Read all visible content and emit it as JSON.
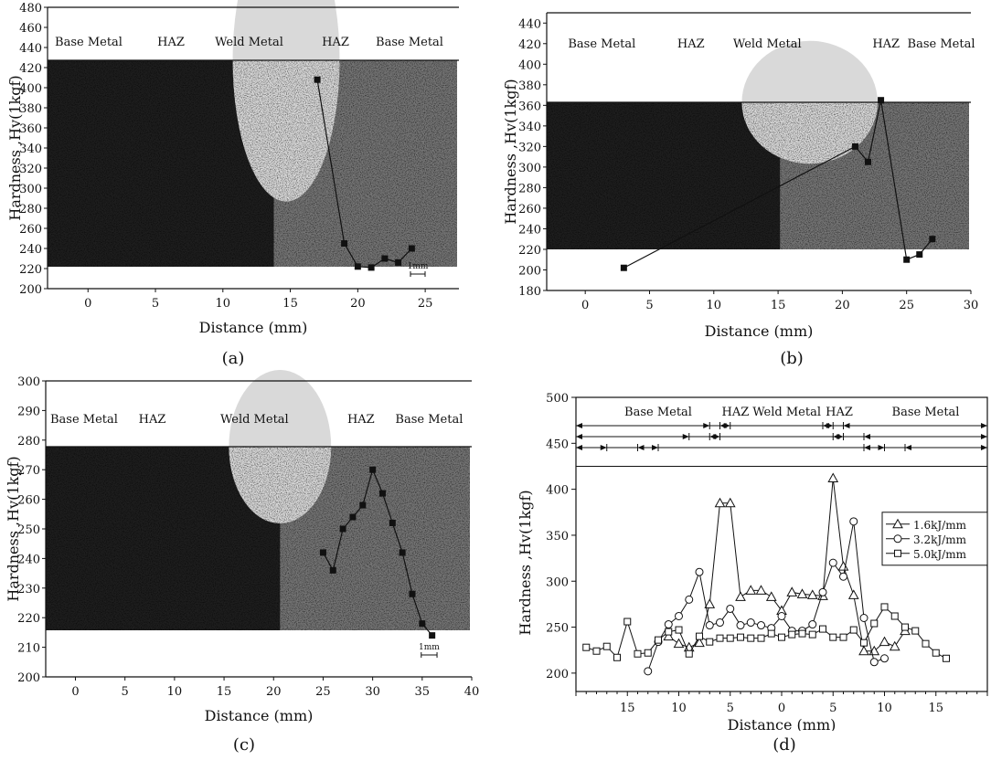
{
  "chart_data": [
    {
      "type": "scatter",
      "caption": "(a)",
      "xlabel": "Distance (mm)",
      "ylabel": "Hardness ,Hv(1kgf)",
      "xlim": [
        -3,
        27.5
      ],
      "ylim": [
        200,
        480
      ],
      "xticks": [
        0,
        5,
        10,
        15,
        20,
        25
      ],
      "yticks": [
        200,
        220,
        240,
        260,
        280,
        300,
        320,
        340,
        360,
        380,
        400,
        420,
        440,
        460,
        480
      ],
      "regions": [
        "Base Metal",
        "HAZ",
        "Weld Metal",
        "HAZ",
        "Base Metal"
      ],
      "scale_bar": "1mm",
      "series": [
        {
          "x": [
            17,
            19,
            20,
            21,
            22,
            23,
            24
          ],
          "y": [
            408,
            245,
            222,
            221,
            230,
            226,
            240
          ]
        }
      ]
    },
    {
      "type": "scatter",
      "caption": "(b)",
      "xlabel": "Distance (mm)",
      "ylabel": "Hardness ,Hv(1kgf)",
      "xlim": [
        -3,
        30
      ],
      "ylim": [
        180,
        450
      ],
      "xticks": [
        0,
        5,
        10,
        15,
        20,
        25,
        30
      ],
      "yticks": [
        180,
        200,
        220,
        240,
        260,
        280,
        300,
        320,
        340,
        360,
        380,
        400,
        420,
        440
      ],
      "regions": [
        "Base Metal",
        "HAZ",
        "Weld Metal",
        "HAZ",
        "Base Metal"
      ],
      "series": [
        {
          "x": [
            3,
            21,
            22,
            23,
            25,
            26,
            27
          ],
          "y": [
            202,
            320,
            305,
            365,
            210,
            215,
            230
          ]
        }
      ]
    },
    {
      "type": "scatter",
      "caption": "(c)",
      "xlabel": "Distance (mm)",
      "ylabel": "Hardness ,Hv(1kgf)",
      "xlim": [
        -3,
        40
      ],
      "ylim": [
        200,
        300
      ],
      "xticks": [
        0,
        5,
        10,
        15,
        20,
        25,
        30,
        35,
        40
      ],
      "yticks": [
        200,
        210,
        220,
        230,
        240,
        250,
        260,
        270,
        280,
        290,
        300
      ],
      "regions": [
        "Base Metal",
        "HAZ",
        "Weld Metal",
        "HAZ",
        "Base Metal"
      ],
      "scale_bar": "1mm",
      "series": [
        {
          "x": [
            25,
            26,
            27,
            28,
            29,
            30,
            31,
            32,
            33,
            34,
            35,
            36
          ],
          "y": [
            242,
            236,
            250,
            254,
            258,
            270,
            262,
            252,
            242,
            228,
            218,
            214
          ]
        }
      ]
    },
    {
      "type": "line",
      "caption": "(d)",
      "xlabel": "Distance (mm)",
      "ylabel": "Hardness ,Hv(1kgf)",
      "xlim": [
        -20,
        20
      ],
      "ylim": [
        180,
        500
      ],
      "xtick_values": [
        -15,
        -10,
        -5,
        0,
        5,
        10,
        15
      ],
      "xtick_labels": [
        "15",
        "10",
        "5",
        "0",
        "5",
        "10",
        "15"
      ],
      "yticks": [
        200,
        250,
        300,
        350,
        400,
        450,
        500
      ],
      "regions": [
        "Base Metal",
        "HAZ",
        "Weld Metal",
        "HAZ",
        "Base Metal"
      ],
      "legend_position": "right",
      "series": [
        {
          "name": "1.6kJ/mm",
          "marker": "triangle",
          "x": [
            -11,
            -10,
            -9,
            -8,
            -7,
            -6,
            -5,
            -4,
            -3,
            -2,
            -1,
            0,
            1,
            2,
            3,
            4,
            5,
            6,
            7,
            8,
            9,
            10,
            11,
            12
          ],
          "y": [
            240,
            232,
            228,
            233,
            275,
            385,
            385,
            283,
            290,
            290,
            283,
            268,
            288,
            286,
            285,
            284,
            412,
            316,
            285,
            224,
            224,
            234,
            229,
            246
          ]
        },
        {
          "name": "3.2kJ/mm",
          "marker": "circle",
          "x": [
            -13,
            -12,
            -11,
            -10,
            -9,
            -8,
            -7,
            -6,
            -5,
            -4,
            -3,
            -2,
            -1,
            0,
            1,
            2,
            3,
            4,
            5,
            6,
            7,
            8,
            9,
            10
          ],
          "y": [
            202,
            234,
            253,
            262,
            280,
            310,
            252,
            255,
            270,
            252,
            255,
            252,
            249,
            262,
            246,
            246,
            253,
            288,
            320,
            305,
            365,
            260,
            212,
            216
          ]
        },
        {
          "name": "5.0kJ/mm",
          "marker": "square",
          "x": [
            -19,
            -18,
            -17,
            -16,
            -15,
            -14,
            -13,
            -12,
            -11,
            -10,
            -9,
            -8,
            -7,
            -6,
            -5,
            -4,
            -3,
            -2,
            -1,
            0,
            1,
            2,
            3,
            4,
            5,
            6,
            7,
            8,
            9,
            10,
            11,
            12,
            13,
            14,
            15,
            16
          ],
          "y": [
            228,
            224,
            229,
            217,
            256,
            221,
            222,
            236,
            245,
            247,
            221,
            240,
            234,
            238,
            238,
            239,
            238,
            238,
            243,
            239,
            242,
            243,
            242,
            248,
            239,
            239,
            247,
            233,
            254,
            272,
            262,
            250,
            246,
            232,
            222,
            216
          ]
        }
      ]
    }
  ]
}
